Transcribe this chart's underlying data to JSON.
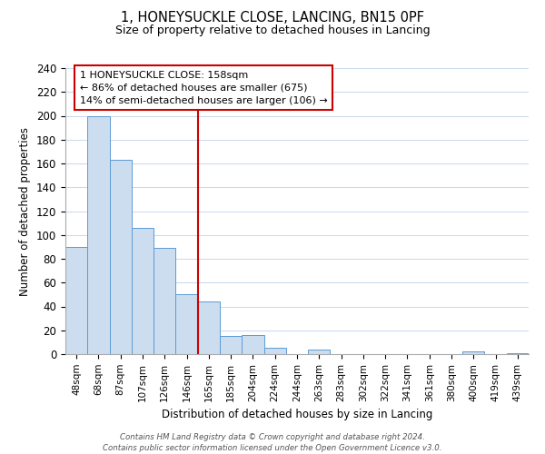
{
  "title": "1, HONEYSUCKLE CLOSE, LANCING, BN15 0PF",
  "subtitle": "Size of property relative to detached houses in Lancing",
  "xlabel": "Distribution of detached houses by size in Lancing",
  "ylabel": "Number of detached properties",
  "bar_labels": [
    "48sqm",
    "68sqm",
    "87sqm",
    "107sqm",
    "126sqm",
    "146sqm",
    "165sqm",
    "185sqm",
    "204sqm",
    "224sqm",
    "244sqm",
    "263sqm",
    "283sqm",
    "302sqm",
    "322sqm",
    "341sqm",
    "361sqm",
    "380sqm",
    "400sqm",
    "419sqm",
    "439sqm"
  ],
  "bar_values": [
    90,
    200,
    163,
    106,
    89,
    50,
    44,
    15,
    16,
    5,
    0,
    4,
    0,
    0,
    0,
    0,
    0,
    0,
    2,
    0,
    1
  ],
  "bar_color": "#ccddf0",
  "bar_edge_color": "#5b9bd5",
  "vline_x_idx": 6,
  "vline_color": "#cc0000",
  "ylim": [
    0,
    240
  ],
  "yticks": [
    0,
    20,
    40,
    60,
    80,
    100,
    120,
    140,
    160,
    180,
    200,
    220,
    240
  ],
  "annotation_title": "1 HONEYSUCKLE CLOSE: 158sqm",
  "annotation_line1": "← 86% of detached houses are smaller (675)",
  "annotation_line2": "14% of semi-detached houses are larger (106) →",
  "annotation_box_color": "#ffffff",
  "annotation_box_edge": "#cc0000",
  "footer1": "Contains HM Land Registry data © Crown copyright and database right 2024.",
  "footer2": "Contains public sector information licensed under the Open Government Licence v3.0.",
  "bg_color": "#ffffff",
  "grid_color": "#c8d8ec"
}
